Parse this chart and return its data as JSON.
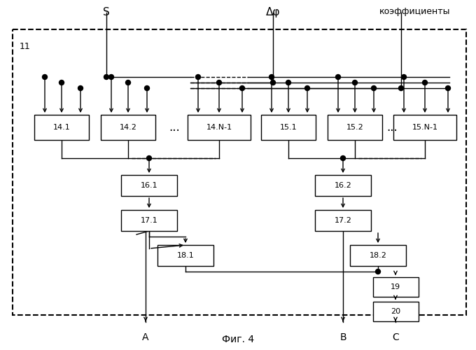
{
  "title": "Фиг. 4",
  "label_11": "11",
  "label_S": "S",
  "label_dphi": "Δφ",
  "label_koef": "коэффициенты",
  "label_A": "A",
  "label_B": "B",
  "label_C": "C",
  "bg_color": "#ffffff",
  "box_color": "#ffffff",
  "box_edge": "#000000",
  "text_color": "#000000"
}
